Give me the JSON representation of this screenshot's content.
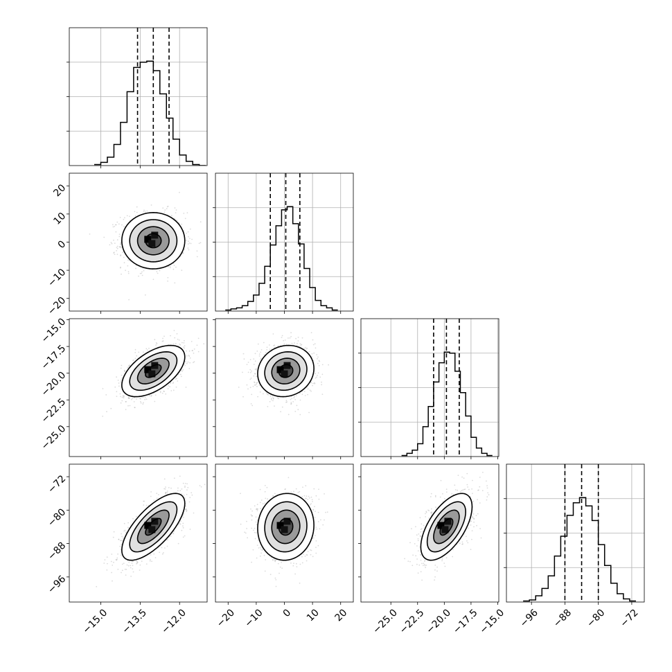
{
  "chart_data": {
    "type": "corner",
    "title": "",
    "colors": {
      "line": "#000000",
      "grid": "#b0b0b0",
      "scatter": "#999999"
    },
    "grid": true,
    "parameters": [
      {
        "label": "",
        "range": [
          -16.2,
          -10.95
        ],
        "ticks": [
          -15.0,
          -13.5,
          -12.0
        ],
        "tick_labels": [
          "−15.0",
          "−13.5",
          "−12.0"
        ],
        "mean": -13.0,
        "sigma": 0.6,
        "quantiles": [
          -13.6,
          -13.0,
          -12.4
        ]
      },
      {
        "label": "",
        "range": [
          -24.5,
          24.5
        ],
        "ticks": [
          -20,
          -10,
          0,
          10,
          20
        ],
        "tick_labels": [
          "−20",
          "−10",
          "0",
          "10",
          "20"
        ],
        "mean": 0.5,
        "sigma": 5.0,
        "quantiles": [
          -5.0,
          0.5,
          5.5
        ]
      },
      {
        "label": "",
        "range": [
          -27.8,
          -14.9
        ],
        "ticks": [
          -25.0,
          -22.5,
          -20.0,
          -17.5,
          -15.0
        ],
        "tick_labels": [
          "−25.0",
          "−22.5",
          "−20.0",
          "−17.5",
          "−15.0"
        ],
        "mean": -19.8,
        "sigma": 1.2,
        "quantiles": [
          -21.0,
          -19.8,
          -18.6
        ]
      },
      {
        "label": "",
        "range": [
          -102.0,
          -69.0
        ],
        "ticks": [
          -96,
          -88,
          -80,
          -72
        ],
        "tick_labels": [
          "−96",
          "−88",
          "−80",
          "−72"
        ],
        "mean": -84.0,
        "sigma": 4.0,
        "quantiles": [
          -88.0,
          -84.0,
          -80.0
        ]
      }
    ],
    "histograms": [
      {
        "param": 0,
        "bins": [
          -15.25,
          -15.0,
          -14.75,
          -14.5,
          -14.25,
          -14.0,
          -13.75,
          -13.5,
          -13.25,
          -13.0,
          -12.75,
          -12.5,
          -12.25,
          -12.0,
          -11.75,
          -11.5,
          -11.25,
          -11.0
        ],
        "counts": [
          1,
          3,
          8,
          20,
          41,
          70,
          93,
          98,
          99,
          90,
          68,
          45,
          25,
          10,
          4,
          1,
          0
        ]
      },
      {
        "param": 1,
        "bins": [
          -21,
          -19,
          -17,
          -15,
          -13,
          -11,
          -9,
          -7,
          -5,
          -3,
          -1,
          1,
          3,
          5,
          7,
          9,
          11,
          13,
          15,
          17,
          19
        ],
        "counts": [
          1,
          2,
          3,
          5,
          9,
          15,
          26,
          42,
          62,
          80,
          95,
          98,
          82,
          63,
          40,
          22,
          10,
          5,
          3,
          1
        ]
      },
      {
        "param": 2,
        "bins": [
          -24,
          -23.5,
          -23,
          -22.5,
          -22,
          -21.5,
          -21,
          -20.5,
          -20,
          -19.5,
          -19,
          -18.5,
          -18,
          -17.5,
          -17,
          -16.5,
          -16,
          -15.5
        ],
        "counts": [
          1,
          3,
          6,
          12,
          28,
          47,
          70,
          88,
          98,
          97,
          80,
          60,
          38,
          18,
          8,
          3,
          1
        ]
      },
      {
        "param": 3,
        "bins": [
          -98,
          -96.5,
          -95,
          -93.5,
          -92,
          -90.5,
          -89,
          -87.5,
          -86,
          -84.5,
          -83,
          -81.5,
          -80,
          -78.5,
          -77,
          -75.5,
          -74,
          -72.5,
          -71
        ],
        "counts": [
          1,
          2,
          6,
          13,
          25,
          44,
          63,
          83,
          95,
          100,
          92,
          78,
          55,
          35,
          18,
          8,
          3,
          1
        ]
      }
    ],
    "pairs": [
      {
        "x": 0,
        "y": 1,
        "correlation": 0.0
      },
      {
        "x": 0,
        "y": 2,
        "correlation": 0.55
      },
      {
        "x": 1,
        "y": 2,
        "correlation": 0.1
      },
      {
        "x": 0,
        "y": 3,
        "correlation": 0.7
      },
      {
        "x": 1,
        "y": 3,
        "correlation": 0.05
      },
      {
        "x": 2,
        "y": 3,
        "correlation": 0.6
      }
    ],
    "contour_levels_sigma": [
      0.5,
      1.0,
      1.5,
      2.0
    ],
    "scatter_points_per_panel": 1200
  }
}
